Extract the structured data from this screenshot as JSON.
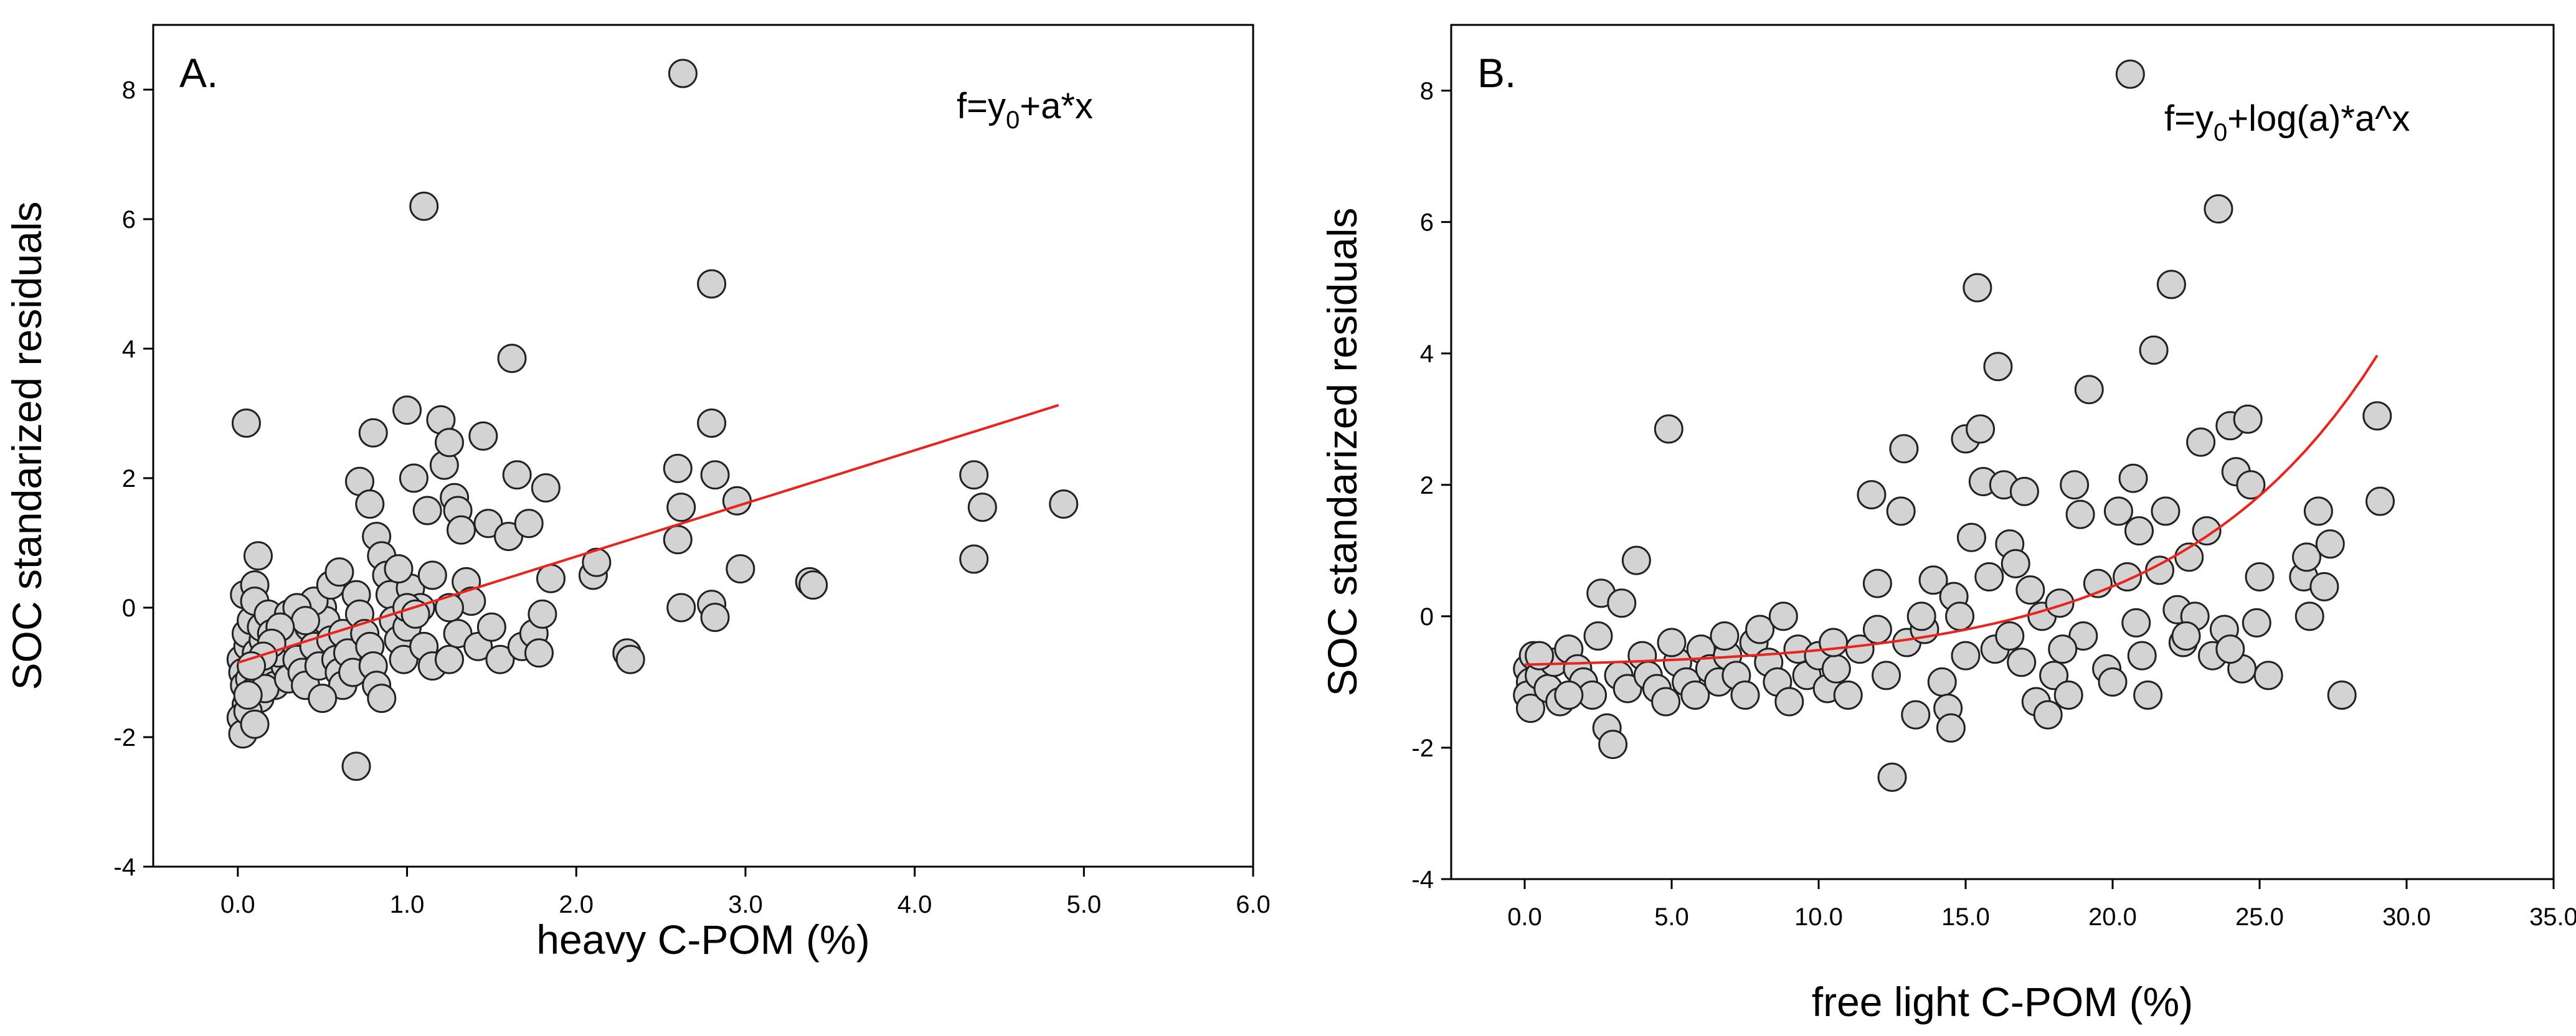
{
  "chart_data": [
    {
      "type": "scatter",
      "panel_label": "A.",
      "formula": {
        "pre": "f=y",
        "sub": "0",
        "post": "+a*x"
      },
      "xlabel": "heavy C-POM (%)",
      "ylabel": "SOC standarized residuals",
      "xlim": [
        -0.5,
        6.0
      ],
      "ylim": [
        -4,
        9
      ],
      "x_ticks": [
        0,
        1,
        2,
        3,
        4,
        5,
        6
      ],
      "x_tick_labels": [
        "0.0",
        "1.0",
        "2.0",
        "3.0",
        "4.0",
        "5.0",
        "6.0"
      ],
      "y_ticks": [
        -4,
        -2,
        0,
        2,
        4,
        6,
        8
      ],
      "y_tick_labels": [
        "-4",
        "-2",
        "0",
        "2",
        "4",
        "6",
        "8"
      ],
      "fit": {
        "model": "linear",
        "y0": -0.85,
        "a": 0.82,
        "x_range": [
          0,
          4.85
        ]
      },
      "points": [
        [
          0.02,
          -0.8
        ],
        [
          0.03,
          -1.0
        ],
        [
          0.04,
          -1.2
        ],
        [
          0.05,
          -1.5
        ],
        [
          0.02,
          -1.7
        ],
        [
          0.03,
          -1.95
        ],
        [
          0.06,
          -0.6
        ],
        [
          0.05,
          -0.4
        ],
        [
          0.08,
          -0.2
        ],
        [
          0.04,
          0.2
        ],
        [
          0.1,
          0.35
        ],
        [
          0.12,
          -0.9
        ],
        [
          0.07,
          -1.1
        ],
        [
          0.09,
          -1.3
        ],
        [
          0.11,
          -0.7
        ],
        [
          0.15,
          -0.5
        ],
        [
          0.13,
          -1.4
        ],
        [
          0.06,
          -1.6
        ],
        [
          0.1,
          -1.8
        ],
        [
          0.05,
          2.85
        ],
        [
          0.1,
          0.1
        ],
        [
          0.14,
          -0.3
        ],
        [
          0.18,
          -0.8
        ],
        [
          0.2,
          -1.0
        ],
        [
          0.22,
          -1.2
        ],
        [
          0.16,
          -1.25
        ],
        [
          0.25,
          -0.6
        ],
        [
          0.28,
          -0.9
        ],
        [
          0.3,
          -1.1
        ],
        [
          0.12,
          0.8
        ],
        [
          0.18,
          -0.1
        ],
        [
          0.2,
          -0.4
        ],
        [
          0.24,
          -0.7
        ],
        [
          0.32,
          -0.5
        ],
        [
          0.35,
          -0.8
        ],
        [
          0.38,
          -1.0
        ],
        [
          0.4,
          -1.2
        ],
        [
          0.42,
          -0.3
        ],
        [
          0.45,
          -0.6
        ],
        [
          0.48,
          -0.9
        ],
        [
          0.5,
          0.0
        ],
        [
          0.52,
          -0.2
        ],
        [
          0.55,
          -0.5
        ],
        [
          0.58,
          -0.8
        ],
        [
          0.6,
          -1.0
        ],
        [
          0.62,
          -1.2
        ],
        [
          0.45,
          0.1
        ],
        [
          0.5,
          -1.4
        ],
        [
          0.55,
          0.35
        ],
        [
          0.6,
          0.55
        ],
        [
          0.62,
          -0.4
        ],
        [
          0.65,
          -0.7
        ],
        [
          0.68,
          -1.0
        ],
        [
          0.7,
          0.2
        ],
        [
          0.72,
          -0.1
        ],
        [
          0.75,
          -0.4
        ],
        [
          0.78,
          -0.6
        ],
        [
          0.8,
          -0.9
        ],
        [
          0.82,
          -1.2
        ],
        [
          0.85,
          -1.4
        ],
        [
          0.7,
          -2.45
        ],
        [
          0.72,
          1.95
        ],
        [
          0.78,
          1.6
        ],
        [
          0.8,
          2.7
        ],
        [
          0.82,
          1.1
        ],
        [
          0.85,
          0.8
        ],
        [
          0.88,
          0.5
        ],
        [
          0.9,
          0.2
        ],
        [
          0.92,
          -0.2
        ],
        [
          0.95,
          -0.5
        ],
        [
          0.98,
          -0.8
        ],
        [
          1.0,
          -0.3
        ],
        [
          1.02,
          0.3
        ],
        [
          1.04,
          2.0
        ],
        [
          1.0,
          3.05
        ],
        [
          1.08,
          0.0
        ],
        [
          1.1,
          -0.6
        ],
        [
          1.12,
          1.5
        ],
        [
          1.1,
          6.2
        ],
        [
          1.15,
          -0.9
        ],
        [
          1.2,
          2.9
        ],
        [
          1.22,
          2.2
        ],
        [
          1.25,
          2.55
        ],
        [
          1.28,
          1.7
        ],
        [
          1.3,
          1.5
        ],
        [
          1.32,
          1.2
        ],
        [
          1.35,
          0.4
        ],
        [
          1.38,
          0.1
        ],
        [
          1.25,
          -0.8
        ],
        [
          1.3,
          -0.4
        ],
        [
          1.42,
          -0.6
        ],
        [
          1.45,
          2.65
        ],
        [
          1.48,
          1.3
        ],
        [
          1.5,
          -0.3
        ],
        [
          1.55,
          -0.8
        ],
        [
          1.6,
          1.1
        ],
        [
          1.62,
          3.85
        ],
        [
          1.65,
          2.05
        ],
        [
          1.68,
          -0.6
        ],
        [
          1.72,
          1.3
        ],
        [
          1.75,
          -0.4
        ],
        [
          1.78,
          -0.7
        ],
        [
          1.8,
          -0.1
        ],
        [
          1.82,
          1.85
        ],
        [
          1.85,
          0.45
        ],
        [
          1.0,
          0.0
        ],
        [
          1.05,
          -0.1
        ],
        [
          0.95,
          0.6
        ],
        [
          1.15,
          0.5
        ],
        [
          1.25,
          0.0
        ],
        [
          2.1,
          0.5
        ],
        [
          2.12,
          0.7
        ],
        [
          2.3,
          -0.7
        ],
        [
          2.32,
          -0.8
        ],
        [
          2.6,
          2.15
        ],
        [
          2.62,
          1.55
        ],
        [
          2.6,
          1.05
        ],
        [
          2.62,
          0.0
        ],
        [
          2.63,
          8.25
        ],
        [
          2.8,
          2.85
        ],
        [
          2.82,
          2.05
        ],
        [
          2.8,
          5.0
        ],
        [
          2.8,
          0.05
        ],
        [
          2.82,
          -0.15
        ],
        [
          2.95,
          1.65
        ],
        [
          2.97,
          0.6
        ],
        [
          3.38,
          0.4
        ],
        [
          3.4,
          0.35
        ],
        [
          4.35,
          2.05
        ],
        [
          4.4,
          1.55
        ],
        [
          4.35,
          0.75
        ],
        [
          4.88,
          1.6
        ],
        [
          0.3,
          -0.1
        ],
        [
          0.35,
          0.0
        ],
        [
          0.4,
          -0.2
        ],
        [
          0.25,
          -0.3
        ],
        [
          0.2,
          -0.55
        ],
        [
          0.15,
          -0.75
        ],
        [
          0.08,
          -0.9
        ],
        [
          0.06,
          -1.35
        ]
      ]
    },
    {
      "type": "scatter",
      "panel_label": "B.",
      "formula": {
        "pre": "f=y",
        "sub": "0",
        "post": "+log(a)*a^x"
      },
      "xlabel": "free light C-POM (%)",
      "ylabel": "SOC standarized residuals",
      "xlim": [
        -2.5,
        35.0
      ],
      "ylim": [
        -4,
        9
      ],
      "x_ticks": [
        0,
        5,
        10,
        15,
        20,
        25,
        30,
        35
      ],
      "x_tick_labels": [
        "0.0",
        "5.0",
        "10.0",
        "15.0",
        "20.0",
        "25.0",
        "30.0",
        "35.0"
      ],
      "y_ticks": [
        -4,
        -2,
        0,
        2,
        4,
        6,
        8
      ],
      "y_tick_labels": [
        "-4",
        "-2",
        "0",
        "2",
        "4",
        "6",
        "8"
      ],
      "fit": {
        "model": "exponential",
        "y0": -0.8,
        "a": 1.16,
        "x_range": [
          0,
          29
        ]
      },
      "points": [
        [
          0.1,
          -0.8
        ],
        [
          0.2,
          -1.0
        ],
        [
          0.1,
          -1.2
        ],
        [
          0.2,
          -1.4
        ],
        [
          0.3,
          -0.6
        ],
        [
          0.5,
          -0.9
        ],
        [
          0.8,
          -1.1
        ],
        [
          1.0,
          -0.7
        ],
        [
          1.2,
          -1.3
        ],
        [
          1.5,
          -0.5
        ],
        [
          1.8,
          -0.8
        ],
        [
          2.0,
          -1.0
        ],
        [
          2.3,
          -1.2
        ],
        [
          2.5,
          -0.3
        ],
        [
          2.6,
          0.35
        ],
        [
          2.8,
          -1.7
        ],
        [
          3.0,
          -1.95
        ],
        [
          3.2,
          -0.9
        ],
        [
          3.5,
          -1.1
        ],
        [
          3.8,
          0.85
        ],
        [
          4.0,
          -0.6
        ],
        [
          4.2,
          -0.9
        ],
        [
          4.5,
          -1.1
        ],
        [
          4.8,
          -1.3
        ],
        [
          4.9,
          2.85
        ],
        [
          5.2,
          -0.7
        ],
        [
          5.5,
          -1.0
        ],
        [
          5.8,
          -1.2
        ],
        [
          6.0,
          -0.5
        ],
        [
          6.3,
          -0.8
        ],
        [
          6.6,
          -1.0
        ],
        [
          6.9,
          -0.6
        ],
        [
          7.2,
          -0.9
        ],
        [
          7.5,
          -1.2
        ],
        [
          7.8,
          -0.4
        ],
        [
          8.0,
          -0.2
        ],
        [
          8.3,
          -0.7
        ],
        [
          8.6,
          -1.0
        ],
        [
          9.0,
          -1.3
        ],
        [
          9.3,
          -0.5
        ],
        [
          9.6,
          -0.9
        ],
        [
          10.0,
          -0.6
        ],
        [
          10.3,
          -1.1
        ],
        [
          10.6,
          -0.8
        ],
        [
          11.0,
          -1.2
        ],
        [
          11.4,
          -0.5
        ],
        [
          11.8,
          1.85
        ],
        [
          12.0,
          0.5
        ],
        [
          12.3,
          -0.9
        ],
        [
          12.5,
          -2.45
        ],
        [
          12.8,
          1.6
        ],
        [
          12.9,
          2.55
        ],
        [
          13.0,
          -0.4
        ],
        [
          13.3,
          -1.5
        ],
        [
          13.6,
          -0.2
        ],
        [
          13.9,
          0.55
        ],
        [
          14.2,
          -1.0
        ],
        [
          14.4,
          -1.4
        ],
        [
          14.5,
          -1.7
        ],
        [
          14.6,
          0.3
        ],
        [
          14.8,
          0.0
        ],
        [
          15.0,
          2.7
        ],
        [
          15.2,
          1.2
        ],
        [
          15.4,
          5.0
        ],
        [
          15.5,
          2.85
        ],
        [
          15.6,
          2.05
        ],
        [
          15.8,
          0.6
        ],
        [
          16.0,
          -0.5
        ],
        [
          16.1,
          3.8
        ],
        [
          16.3,
          2.0
        ],
        [
          16.5,
          1.1
        ],
        [
          16.7,
          0.8
        ],
        [
          16.9,
          -0.7
        ],
        [
          17.0,
          1.9
        ],
        [
          17.2,
          0.4
        ],
        [
          17.4,
          -1.3
        ],
        [
          17.6,
          0.0
        ],
        [
          17.8,
          -1.5
        ],
        [
          18.0,
          -0.9
        ],
        [
          18.2,
          0.2
        ],
        [
          18.5,
          -1.2
        ],
        [
          18.7,
          2.0
        ],
        [
          18.9,
          1.55
        ],
        [
          19.0,
          -0.3
        ],
        [
          19.2,
          3.45
        ],
        [
          19.5,
          0.5
        ],
        [
          19.8,
          -0.8
        ],
        [
          20.0,
          -1.0
        ],
        [
          20.2,
          1.6
        ],
        [
          20.5,
          0.6
        ],
        [
          20.6,
          8.25
        ],
        [
          20.7,
          2.1
        ],
        [
          20.9,
          1.3
        ],
        [
          21.0,
          -0.6
        ],
        [
          21.2,
          -1.2
        ],
        [
          21.4,
          4.05
        ],
        [
          21.6,
          0.7
        ],
        [
          21.8,
          1.6
        ],
        [
          22.0,
          5.05
        ],
        [
          22.2,
          0.1
        ],
        [
          22.4,
          -0.4
        ],
        [
          22.6,
          0.9
        ],
        [
          22.8,
          0.0
        ],
        [
          23.0,
          2.65
        ],
        [
          23.2,
          1.3
        ],
        [
          23.4,
          -0.6
        ],
        [
          23.6,
          6.2
        ],
        [
          23.8,
          -0.2
        ],
        [
          24.0,
          2.9
        ],
        [
          24.2,
          2.2
        ],
        [
          24.4,
          -0.8
        ],
        [
          24.6,
          3.0
        ],
        [
          24.7,
          2.0
        ],
        [
          24.9,
          -0.1
        ],
        [
          25.0,
          0.6
        ],
        [
          25.3,
          -0.9
        ],
        [
          26.5,
          0.6
        ],
        [
          26.6,
          0.9
        ],
        [
          26.7,
          0.0
        ],
        [
          27.0,
          1.6
        ],
        [
          27.2,
          0.45
        ],
        [
          27.4,
          1.1
        ],
        [
          27.8,
          -1.2
        ],
        [
          29.0,
          3.05
        ],
        [
          29.1,
          1.75
        ],
        [
          0.5,
          -0.6
        ],
        [
          1.5,
          -1.2
        ],
        [
          3.3,
          0.2
        ],
        [
          5.0,
          -0.4
        ],
        [
          6.8,
          -0.3
        ],
        [
          8.8,
          0.0
        ],
        [
          10.5,
          -0.4
        ],
        [
          12.0,
          -0.2
        ],
        [
          13.5,
          0.0
        ],
        [
          15.0,
          -0.6
        ],
        [
          16.5,
          -0.3
        ],
        [
          18.3,
          -0.5
        ],
        [
          20.8,
          -0.1
        ],
        [
          22.5,
          -0.3
        ],
        [
          24.0,
          -0.5
        ]
      ]
    }
  ]
}
